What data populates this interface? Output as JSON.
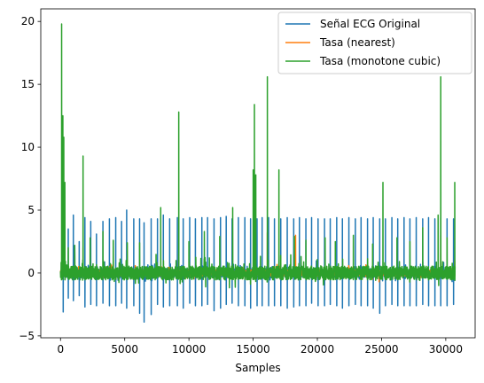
{
  "chart_data": {
    "type": "line",
    "title": "",
    "xlabel": "Samples",
    "ylabel": "",
    "xlim": [
      -1537,
      32286
    ],
    "ylim": [
      -5.15,
      21.0
    ],
    "x_ticks": [
      0,
      5000,
      10000,
      15000,
      20000,
      25000,
      30000
    ],
    "y_ticks": [
      -5,
      0,
      5,
      10,
      15,
      20
    ],
    "legend_position": "top-right",
    "grid": false,
    "series": [
      {
        "name": "Señal ECG Original",
        "color": "#1f77b4",
        "x_range": [
          0,
          30720
        ],
        "baseline": 0.0,
        "noise": 0.35,
        "beats": [
          [
            200,
            0.9,
            -3.1
          ],
          [
            600,
            3.5,
            -2.0
          ],
          [
            1000,
            4.6,
            -2.2
          ],
          [
            1450,
            2.5,
            -1.8
          ],
          [
            1900,
            4.4,
            -2.7
          ],
          [
            2350,
            4.1,
            -2.5
          ],
          [
            2800,
            3.1,
            -2.6
          ],
          [
            3300,
            4.1,
            -2.4
          ],
          [
            3800,
            4.3,
            -2.6
          ],
          [
            4300,
            4.4,
            -2.6
          ],
          [
            4750,
            4.1,
            -2.4
          ],
          [
            5150,
            5.0,
            -2.8
          ],
          [
            5700,
            4.3,
            -2.6
          ],
          [
            6150,
            4.3,
            -3.2
          ],
          [
            6500,
            4.0,
            -3.9
          ],
          [
            7050,
            4.3,
            -3.3
          ],
          [
            7550,
            4.3,
            -2.5
          ],
          [
            8000,
            4.6,
            -2.7
          ],
          [
            8500,
            4.3,
            -2.6
          ],
          [
            9100,
            4.4,
            -2.6
          ],
          [
            9550,
            4.3,
            -2.8
          ],
          [
            10050,
            4.4,
            -2.4
          ],
          [
            10500,
            4.3,
            -2.6
          ],
          [
            11000,
            4.4,
            -2.6
          ],
          [
            11450,
            4.4,
            -2.5
          ],
          [
            11950,
            4.3,
            -3.0
          ],
          [
            12450,
            4.4,
            -2.8
          ],
          [
            12900,
            4.5,
            -2.5
          ],
          [
            13350,
            4.3,
            -2.4
          ],
          [
            13850,
            4.4,
            -2.6
          ],
          [
            14350,
            4.4,
            -2.6
          ],
          [
            14800,
            4.3,
            -2.8
          ],
          [
            15300,
            4.3,
            -2.6
          ],
          [
            15700,
            4.4,
            -2.6
          ],
          [
            16200,
            4.4,
            -2.6
          ],
          [
            16650,
            4.3,
            -2.6
          ],
          [
            17150,
            4.3,
            -2.6
          ],
          [
            17650,
            4.4,
            -2.8
          ],
          [
            18150,
            4.3,
            -2.7
          ],
          [
            18600,
            4.4,
            -2.6
          ],
          [
            19100,
            4.3,
            -2.6
          ],
          [
            19550,
            4.4,
            -2.4
          ],
          [
            20050,
            4.3,
            -2.6
          ],
          [
            20550,
            4.3,
            -2.6
          ],
          [
            21000,
            4.3,
            -2.5
          ],
          [
            21500,
            4.4,
            -2.6
          ],
          [
            21950,
            4.3,
            -2.8
          ],
          [
            22450,
            4.4,
            -2.6
          ],
          [
            22950,
            4.3,
            -2.5
          ],
          [
            23400,
            4.4,
            -2.6
          ],
          [
            23900,
            4.3,
            -2.6
          ],
          [
            24350,
            4.4,
            -2.8
          ],
          [
            24850,
            4.3,
            -3.2
          ],
          [
            25300,
            4.3,
            -2.6
          ],
          [
            25800,
            4.4,
            -2.5
          ],
          [
            26250,
            4.3,
            -2.6
          ],
          [
            26750,
            4.4,
            -2.6
          ],
          [
            27200,
            4.3,
            -2.6
          ],
          [
            27700,
            4.4,
            -2.6
          ],
          [
            28200,
            4.3,
            -2.5
          ],
          [
            28650,
            4.4,
            -2.6
          ],
          [
            29150,
            4.3,
            -2.6
          ],
          [
            29600,
            4.4,
            -2.6
          ],
          [
            30100,
            4.3,
            -2.6
          ],
          [
            30600,
            4.3,
            -2.5
          ]
        ]
      },
      {
        "name": "Tasa (nearest)",
        "color": "#ff7f0e",
        "x_range": [
          0,
          30720
        ],
        "baseline": 0.0,
        "noise": 0.25,
        "spikes": [
          [
            250,
            2.0
          ],
          [
            1750,
            2.0
          ],
          [
            9200,
            1.5
          ],
          [
            15100,
            5.2
          ],
          [
            16100,
            3.2
          ],
          [
            18300,
            3.0
          ],
          [
            24300,
            -0.5
          ],
          [
            24800,
            -0.7
          ],
          [
            29600,
            3.0
          ],
          [
            30700,
            1.0
          ]
        ]
      },
      {
        "name": "Tasa (monotone cubic)",
        "color": "#2ca02c",
        "x_range": [
          0,
          30720
        ],
        "baseline": 0.0,
        "noise": 0.55,
        "spikes": [
          [
            80,
            19.8
          ],
          [
            180,
            12.5
          ],
          [
            250,
            10.8
          ],
          [
            330,
            7.2
          ],
          [
            600,
            2.0
          ],
          [
            1100,
            2.2
          ],
          [
            1750,
            9.3
          ],
          [
            2300,
            2.8
          ],
          [
            3300,
            3.3
          ],
          [
            4100,
            2.6
          ],
          [
            5200,
            2.4
          ],
          [
            6150,
            2.4
          ],
          [
            7800,
            5.2
          ],
          [
            9200,
            12.8
          ],
          [
            10000,
            2.5
          ],
          [
            11200,
            3.3
          ],
          [
            12400,
            2.9
          ],
          [
            13400,
            5.2
          ],
          [
            15000,
            8.2
          ],
          [
            15100,
            13.4
          ],
          [
            15200,
            7.8
          ],
          [
            16100,
            15.6
          ],
          [
            17000,
            8.2
          ],
          [
            18200,
            2.9
          ],
          [
            19100,
            2.6
          ],
          [
            20600,
            2.8
          ],
          [
            21400,
            2.5
          ],
          [
            22800,
            3.0
          ],
          [
            24300,
            2.3
          ],
          [
            25100,
            7.2
          ],
          [
            26200,
            2.8
          ],
          [
            27200,
            2.5
          ],
          [
            28200,
            3.6
          ],
          [
            29400,
            4.6
          ],
          [
            29600,
            15.6
          ],
          [
            30100,
            2.8
          ],
          [
            30700,
            7.2
          ]
        ]
      }
    ]
  }
}
